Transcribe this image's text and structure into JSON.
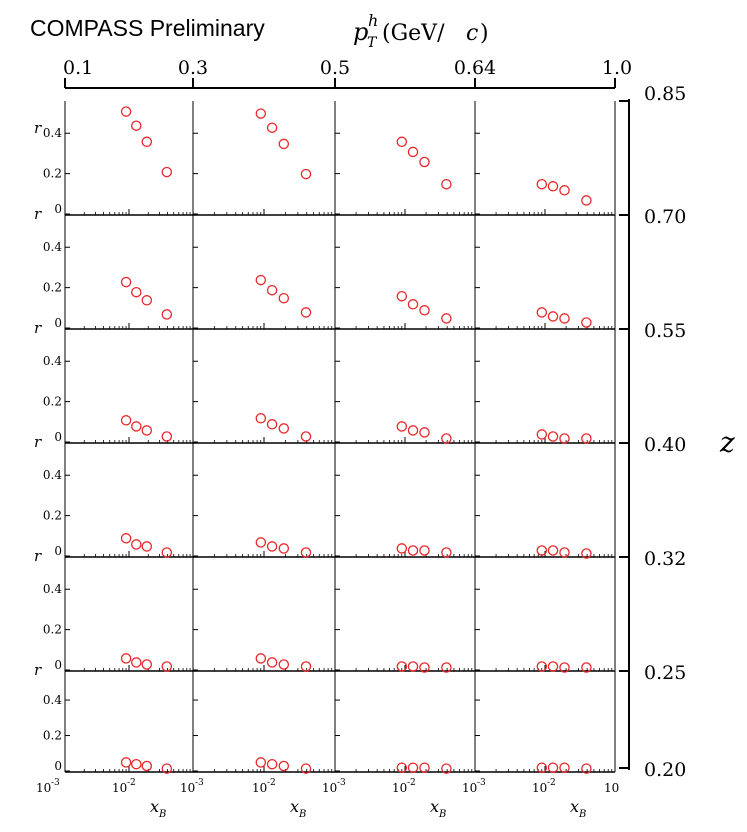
{
  "header": {
    "experiment_label": "COMPASS Preliminary",
    "top_axis_label": "p_T^h (GeV/c)",
    "top_axis_ticks": [
      "0.1",
      "0.3",
      "0.5",
      "0.64",
      "1.0"
    ],
    "right_axis_label": "z",
    "right_axis_ticks": [
      "0.85",
      "0.70",
      "0.55",
      "0.40",
      "0.32",
      "0.25",
      "0.20"
    ]
  },
  "panel_axes": {
    "y_label": "r",
    "y_ticks": [
      "0",
      "0.2",
      "0.4"
    ],
    "x_label": "x_B",
    "x_tick_labels": [
      [
        "10",
        "-3"
      ],
      [
        "10",
        "-2"
      ],
      [
        "10",
        ""
      ]
    ]
  },
  "colors": {
    "marker": "#e8262a",
    "axis": "#000000"
  },
  "chart_data": {
    "type": "scatter",
    "x_axis": {
      "label": "x_B",
      "scale": "log",
      "range": [
        0.001,
        0.1
      ]
    },
    "y_axis": {
      "label": "r",
      "range": [
        0,
        0.53
      ]
    },
    "x": [
      0.009,
      0.013,
      0.019,
      0.039
    ],
    "columns_pTh": [
      "0.1-0.3",
      "0.3-0.5",
      "0.5-0.64",
      "0.64-1.0"
    ],
    "rows_z": [
      "0.70-0.85",
      "0.55-0.70",
      "0.40-0.55",
      "0.32-0.40",
      "0.25-0.32",
      "0.20-0.25"
    ],
    "panels": [
      [
        [
          0.5,
          0.43,
          0.35,
          0.2
        ],
        [
          0.49,
          0.42,
          0.34,
          0.19
        ],
        [
          0.35,
          0.3,
          0.25,
          0.14
        ],
        [
          0.14,
          0.13,
          0.11,
          0.06
        ]
      ],
      [
        [
          0.22,
          0.17,
          0.13,
          0.06
        ],
        [
          0.23,
          0.18,
          0.14,
          0.07
        ],
        [
          0.15,
          0.11,
          0.08,
          0.04
        ],
        [
          0.07,
          0.05,
          0.04,
          0.02
        ]
      ],
      [
        [
          0.1,
          0.07,
          0.05,
          0.02
        ],
        [
          0.11,
          0.08,
          0.06,
          0.02
        ],
        [
          0.07,
          0.05,
          0.04,
          0.01
        ],
        [
          0.03,
          0.02,
          0.01,
          0.01
        ]
      ],
      [
        [
          0.08,
          0.05,
          0.04,
          0.01
        ],
        [
          0.06,
          0.04,
          0.03,
          0.01
        ],
        [
          0.03,
          0.02,
          0.02,
          0.01
        ],
        [
          0.02,
          0.02,
          0.01,
          0.005
        ]
      ],
      [
        [
          0.05,
          0.03,
          0.02,
          0.01
        ],
        [
          0.05,
          0.03,
          0.02,
          0.01
        ],
        [
          0.01,
          0.01,
          0.005,
          0.005
        ],
        [
          0.01,
          0.01,
          0.005,
          0.005
        ]
      ],
      [
        [
          0.04,
          0.03,
          0.02,
          0.005
        ],
        [
          0.04,
          0.03,
          0.02,
          0.005
        ],
        [
          0.01,
          0.01,
          0.01,
          0.005
        ],
        [
          0.01,
          0.01,
          0.01,
          0.005
        ]
      ]
    ],
    "grid": false
  }
}
